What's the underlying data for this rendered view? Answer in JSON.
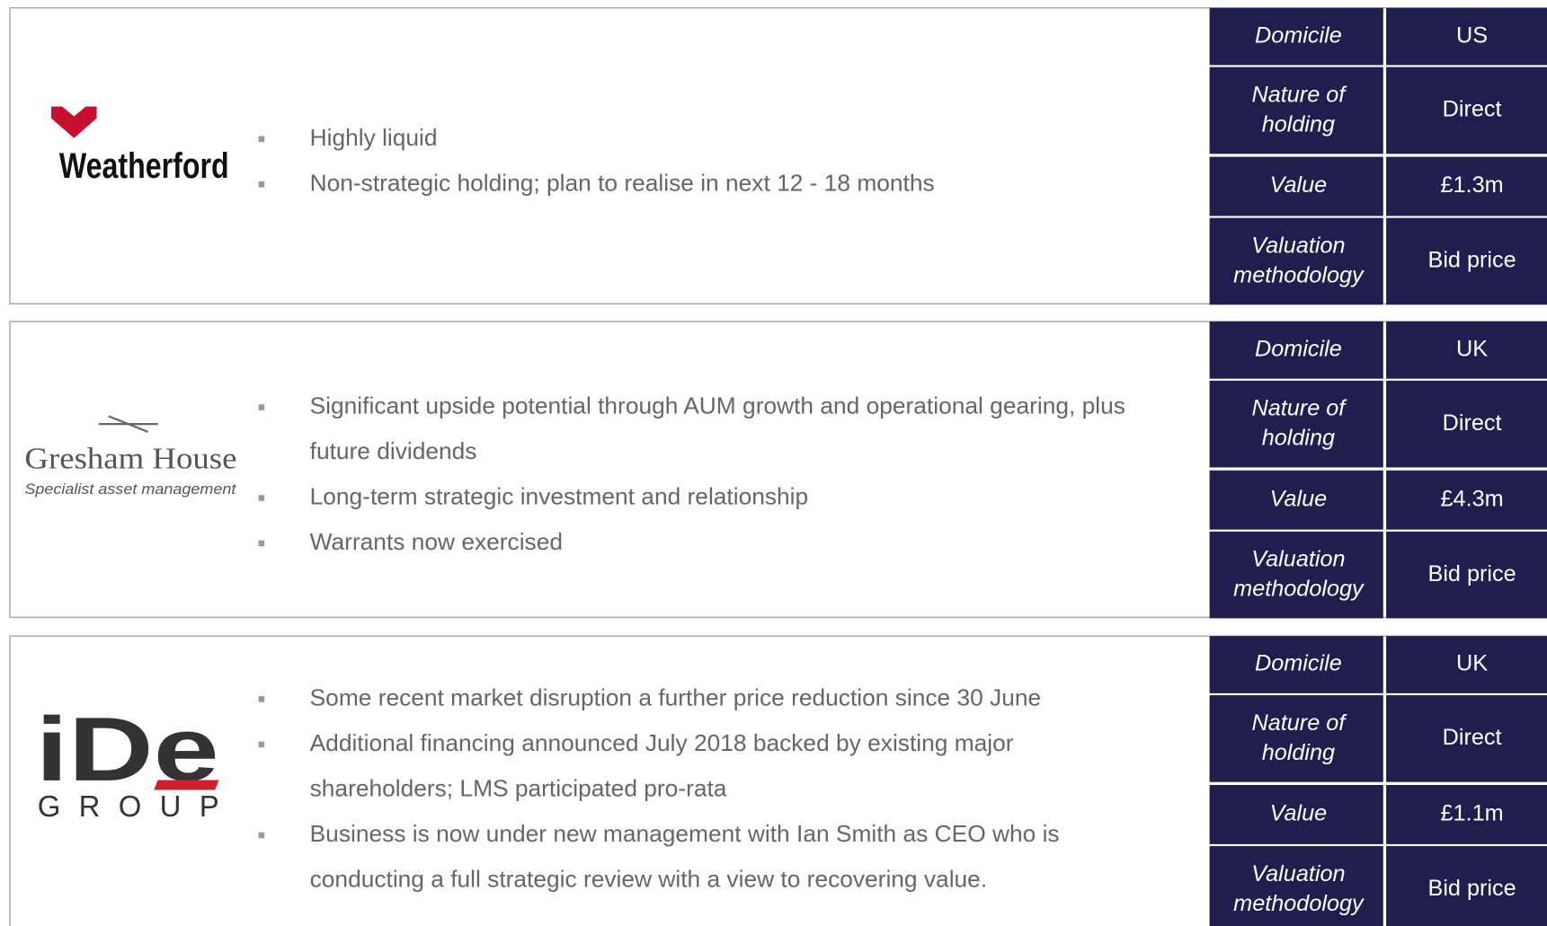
{
  "holdings": [
    {
      "logo": {
        "name": "Weatherford"
      },
      "bullets": [
        [
          "Highly liquid"
        ],
        [
          "Non-strategic holding; plan to realise in next 12 - 18 months"
        ]
      ],
      "table": [
        [
          "Domicile",
          "US"
        ],
        [
          "Nature of holding",
          "Direct"
        ],
        [
          "Value",
          "£1.3m"
        ],
        [
          "Valuation methodology",
          "Bid price"
        ]
      ]
    },
    {
      "logo": {
        "name": "Gresham House",
        "tagline": "Specialist asset management"
      },
      "bullets": [
        [
          "Significant upside potential through AUM growth and operational gearing, plus",
          "future dividends"
        ],
        [
          "Long-term strategic investment and relationship"
        ],
        [
          "Warrants now exercised"
        ]
      ],
      "table": [
        [
          "Domicile",
          "UK"
        ],
        [
          "Nature of holding",
          "Direct"
        ],
        [
          "Value",
          "£4.3m"
        ],
        [
          "Valuation methodology",
          "Bid price"
        ]
      ]
    },
    {
      "logo": {
        "name": "iDe",
        "tagline": "GROUP"
      },
      "bullets": [
        [
          "Some recent market disruption a further price reduction since 30 June"
        ],
        [
          "Additional financing announced July 2018 backed by existing major",
          "shareholders; LMS participated pro-rata"
        ],
        [
          "Business is now under new management with Ian Smith as CEO who is",
          "conducting a full strategic review with a view to recovering value."
        ]
      ],
      "table": [
        [
          "Domicile",
          "UK"
        ],
        [
          "Nature of holding",
          "Direct"
        ],
        [
          "Value",
          "£1.1m"
        ],
        [
          "Valuation methodology",
          "Bid price"
        ]
      ]
    }
  ]
}
